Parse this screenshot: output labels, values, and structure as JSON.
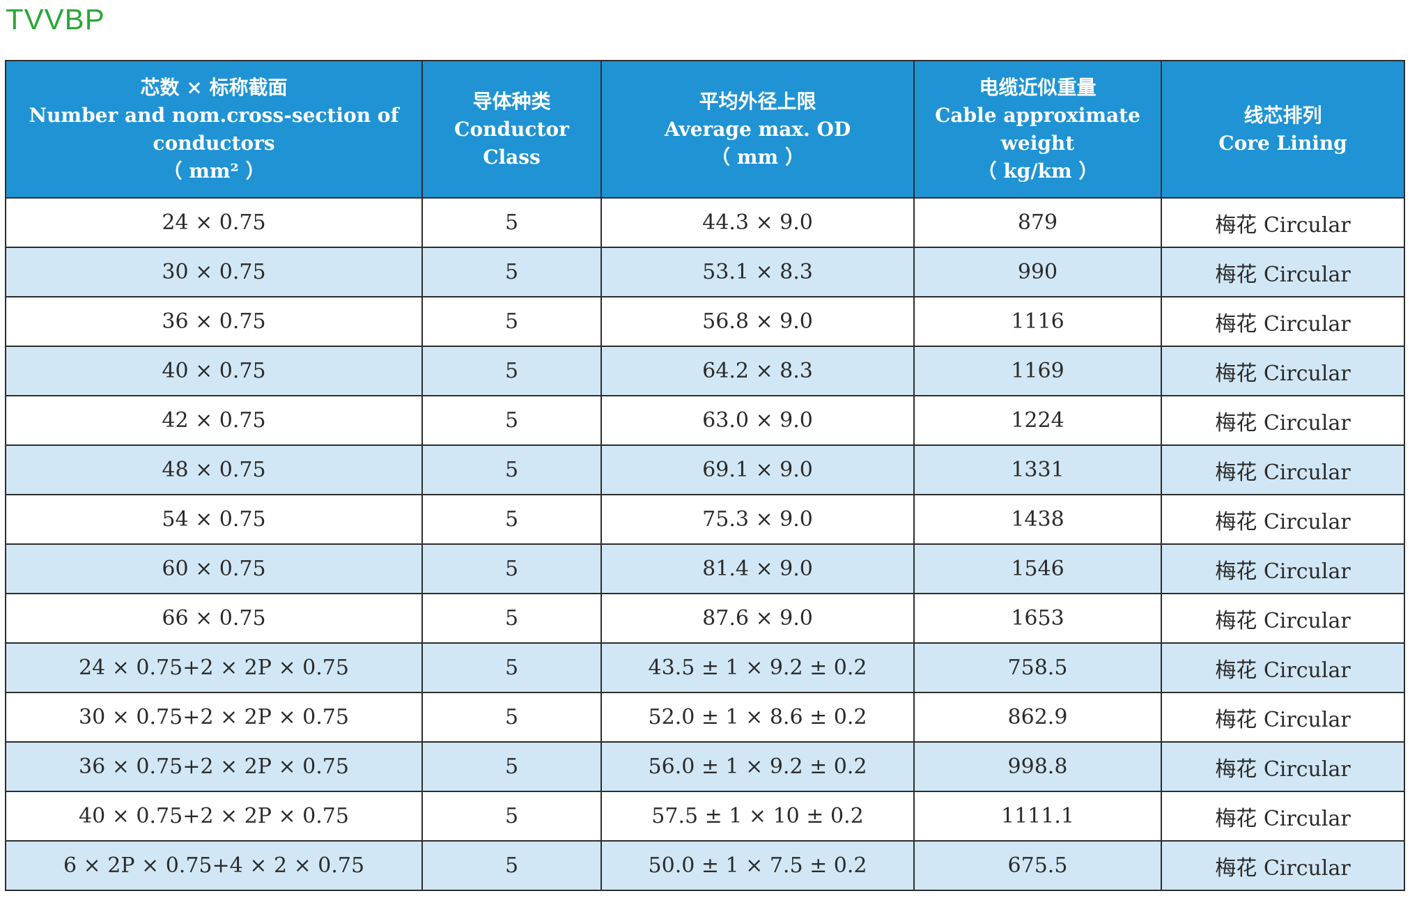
{
  "title": "TVVBP",
  "headers": [
    [
      "芯数 × 标称截面",
      "Number and nom.cross-section of",
      "conductors",
      "（ mm² ）"
    ],
    [
      "导体种类",
      "Conductor",
      "Class"
    ],
    [
      "平均外径上限",
      "Average max. OD",
      "（ mm ）"
    ],
    [
      "电缆近似重量",
      "Cable approximate",
      "weight",
      "（ kg/km ）"
    ],
    [
      "线芯排列",
      "Core Lining"
    ]
  ],
  "rows": [
    [
      "24 × 0.75",
      "5",
      "44.3 × 9.0",
      "879",
      "梅花 Circular"
    ],
    [
      "30 × 0.75",
      "5",
      "53.1 × 8.3",
      "990",
      "梅花 Circular"
    ],
    [
      "36 × 0.75",
      "5",
      "56.8 × 9.0",
      "1116",
      "梅花 Circular"
    ],
    [
      "40 × 0.75",
      "5",
      "64.2 × 8.3",
      "1169",
      "梅花 Circular"
    ],
    [
      "42 × 0.75",
      "5",
      "63.0 × 9.0",
      "1224",
      "梅花 Circular"
    ],
    [
      "48 × 0.75",
      "5",
      "69.1 × 9.0",
      "1331",
      "梅花 Circular"
    ],
    [
      "54 × 0.75",
      "5",
      "75.3 × 9.0",
      "1438",
      "梅花 Circular"
    ],
    [
      "60 × 0.75",
      "5",
      "81.4 × 9.0",
      "1546",
      "梅花 Circular"
    ],
    [
      "66 × 0.75",
      "5",
      "87.6 × 9.0",
      "1653",
      "梅花 Circular"
    ],
    [
      "24 × 0.75+2 × 2P × 0.75",
      "5",
      "43.5 ± 1 × 9.2 ± 0.2",
      "758.5",
      "梅花 Circular"
    ],
    [
      "30 × 0.75+2 × 2P × 0.75",
      "5",
      "52.0 ± 1 × 8.6 ± 0.2",
      "862.9",
      "梅花 Circular"
    ],
    [
      "36 × 0.75+2 × 2P × 0.75",
      "5",
      "56.0 ± 1 × 9.2 ± 0.2",
      "998.8",
      "梅花 Circular"
    ],
    [
      "40 × 0.75+2 × 2P × 0.75",
      "5",
      "57.5 ± 1 × 10 ± 0.2",
      "1111.1",
      "梅花 Circular"
    ],
    [
      "6 × 2P × 0.75+4 × 2 × 0.75",
      "5",
      "50.0 ± 1 × 7.5 ± 0.2",
      "675.5",
      "梅花 Circular"
    ]
  ],
  "colors": {
    "title": "#2aa637",
    "header_bg": "#1f93d4",
    "header_text": "#ffffff",
    "row_even_bg": "#d2e7f5",
    "row_odd_bg": "#ffffff",
    "border": "#2d2d2d"
  }
}
